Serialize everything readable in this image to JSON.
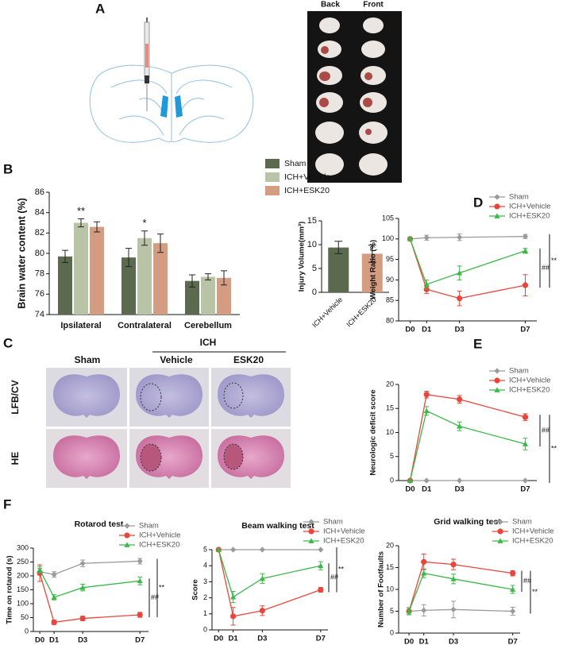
{
  "figure": {
    "panel_labels": [
      "A",
      "B",
      "C",
      "D",
      "E",
      "F"
    ],
    "photo_headers": [
      "Back",
      "Front"
    ],
    "histology": {
      "group": "ICH",
      "columns": [
        "Sham",
        "Vehicle",
        "ESK20"
      ],
      "rows": [
        "LFB/CV",
        "HE"
      ]
    }
  },
  "chart_data": [
    {
      "type": "bar",
      "y_label": "Brain water content (%)",
      "categories": [
        "Ipsilateral",
        "Contralateral",
        "Cerebellum"
      ],
      "series": [
        {
          "name": "Sham",
          "color": "#5b6a4e",
          "values": [
            79.7,
            79.6,
            77.3
          ],
          "errors": [
            0.6,
            0.9,
            0.6
          ]
        },
        {
          "name": "ICH+Vehicle",
          "color": "#b9c3a5",
          "values": [
            83.0,
            81.5,
            77.7
          ],
          "errors": [
            0.4,
            0.7,
            0.3
          ]
        },
        {
          "name": "ICH+ESK20",
          "color": "#d49c80",
          "values": [
            82.6,
            81.0,
            77.6
          ],
          "errors": [
            0.5,
            0.9,
            0.7
          ]
        }
      ],
      "annotations": [
        "**",
        "*"
      ],
      "ylim": [
        74,
        86
      ],
      "yticks": [
        74,
        76,
        78,
        80,
        82,
        84,
        86
      ]
    },
    {
      "type": "bar",
      "y_label": "Injury Volume(mm³)",
      "categories": [
        "ICH+Vehicle",
        "ICH+ESK20"
      ],
      "values": [
        9.4,
        8.1
      ],
      "errors": [
        1.3,
        1.8
      ],
      "colors": [
        "#5b6a4e",
        "#d49c80"
      ],
      "ylim": [
        0,
        15
      ],
      "yticks": [
        0,
        5,
        10,
        15
      ]
    },
    {
      "type": "line",
      "y_label": "Weight Ratio (%)",
      "x": [
        0,
        1,
        3,
        7
      ],
      "xticks": [
        {
          "value": 0,
          "label": "D0"
        },
        {
          "value": 1,
          "label": "D1"
        },
        {
          "value": 3,
          "label": "D3"
        },
        {
          "value": 7,
          "label": "D7"
        }
      ],
      "xlim": [
        -0.7,
        7.7
      ],
      "ylim": [
        80,
        105
      ],
      "yticks": [
        80,
        85,
        90,
        95,
        100,
        105
      ],
      "series": [
        {
          "name": "Sham",
          "color": "#9a9a9a",
          "marker": "diamond",
          "values": [
            100,
            100.3,
            100.4,
            100.6
          ],
          "errors": [
            0.3,
            0.6,
            0.8,
            0.5
          ]
        },
        {
          "name": "ICH+Vehicle",
          "color": "#e8453c",
          "marker": "circle",
          "values": [
            100,
            87.7,
            85.5,
            88.7
          ],
          "errors": [
            0.3,
            1.0,
            1.8,
            2.6
          ]
        },
        {
          "name": "ICH+ESK20",
          "color": "#3cb84a",
          "marker": "triangle",
          "values": [
            100,
            88.9,
            91.7,
            97.1
          ],
          "errors": [
            0.3,
            1.1,
            1.7,
            0.6
          ]
        }
      ],
      "annotations": [
        "##",
        "**"
      ]
    },
    {
      "type": "line",
      "y_label": "Neurologic deficit score",
      "x": [
        0,
        1,
        3,
        7
      ],
      "xticks": [
        {
          "value": 0,
          "label": "D0"
        },
        {
          "value": 1,
          "label": "D1"
        },
        {
          "value": 3,
          "label": "D3"
        },
        {
          "value": 7,
          "label": "D7"
        }
      ],
      "xlim": [
        -0.7,
        7.7
      ],
      "ylim": [
        0,
        20
      ],
      "yticks": [
        0,
        5,
        10,
        15,
        20
      ],
      "series": [
        {
          "name": "Sham",
          "color": "#9a9a9a",
          "marker": "diamond",
          "values": [
            0,
            0,
            0,
            0
          ],
          "errors": [
            0,
            0,
            0,
            0
          ]
        },
        {
          "name": "ICH+Vehicle",
          "color": "#e8453c",
          "marker": "circle",
          "values": [
            0,
            17.9,
            16.9,
            13.2
          ],
          "errors": [
            0,
            0.7,
            0.8,
            0.7
          ]
        },
        {
          "name": "ICH+ESK20",
          "color": "#3cb84a",
          "marker": "triangle",
          "values": [
            0,
            14.5,
            11.3,
            7.6
          ],
          "errors": [
            0,
            0.9,
            0.9,
            1.2
          ]
        }
      ],
      "annotations": [
        "##",
        "**"
      ]
    },
    {
      "type": "line",
      "title": "Rotarod test",
      "y_label": "Time on rotarod (s)",
      "x": [
        0,
        1,
        3,
        7
      ],
      "xticks": [
        {
          "value": 0,
          "label": "D0"
        },
        {
          "value": 1,
          "label": "D1"
        },
        {
          "value": 3,
          "label": "D3"
        },
        {
          "value": 7,
          "label": "D7"
        }
      ],
      "xlim": [
        -0.45,
        7.6
      ],
      "ylim": [
        0,
        300
      ],
      "yticks": [
        0,
        50,
        100,
        150,
        200,
        250,
        300
      ],
      "series": [
        {
          "name": "Sham",
          "color": "#9a9a9a",
          "marker": "diamond",
          "values": [
            215,
            205,
            245,
            253
          ],
          "errors": [
            12,
            10,
            12,
            10
          ]
        },
        {
          "name": "ICH+Vehicle",
          "color": "#e8453c",
          "marker": "circle",
          "values": [
            210,
            33,
            47,
            60
          ],
          "errors": [
            30,
            8,
            8,
            9
          ]
        },
        {
          "name": "ICH+ESK20",
          "color": "#3cb84a",
          "marker": "triangle",
          "values": [
            222,
            123,
            158,
            182
          ],
          "errors": [
            12,
            9,
            12,
            14
          ]
        }
      ],
      "annotations": [
        "##",
        "**"
      ]
    },
    {
      "type": "line",
      "title": "Beam walking test",
      "y_label": "Score",
      "x": [
        0,
        1,
        3,
        7
      ],
      "xticks": [
        {
          "value": 0,
          "label": "D0"
        },
        {
          "value": 1,
          "label": "D1"
        },
        {
          "value": 3,
          "label": "D3"
        },
        {
          "value": 7,
          "label": "D7"
        }
      ],
      "xlim": [
        -0.45,
        7.5
      ],
      "ylim": [
        0,
        5
      ],
      "yticks": [
        0,
        1,
        2,
        3,
        4,
        5
      ],
      "series": [
        {
          "name": "Sham",
          "color": "#9a9a9a",
          "marker": "diamond",
          "values": [
            5,
            5,
            5,
            5
          ],
          "errors": [
            0,
            0,
            0,
            0
          ]
        },
        {
          "name": "ICH+Vehicle",
          "color": "#e8453c",
          "marker": "circle",
          "values": [
            5,
            0.85,
            1.2,
            2.5
          ],
          "errors": [
            0,
            0.55,
            0.3,
            0.15
          ]
        },
        {
          "name": "ICH+ESK20",
          "color": "#3cb84a",
          "marker": "triangle",
          "values": [
            5,
            2.05,
            3.2,
            4.0
          ],
          "errors": [
            0,
            0.35,
            0.3,
            0.25
          ]
        }
      ],
      "annotations": [
        "##",
        "**"
      ]
    },
    {
      "type": "line",
      "title": "Grid walking test",
      "y_label": "Number of Footfaults",
      "x": [
        0,
        1,
        3,
        7
      ],
      "xticks": [
        {
          "value": 0,
          "label": "D0"
        },
        {
          "value": 1,
          "label": "D1"
        },
        {
          "value": 3,
          "label": "D3"
        },
        {
          "value": 7,
          "label": "D7"
        }
      ],
      "xlim": [
        -0.7,
        7.5
      ],
      "ylim": [
        0,
        20
      ],
      "yticks": [
        0,
        5,
        10,
        15,
        20
      ],
      "series": [
        {
          "name": "Sham",
          "color": "#9a9a9a",
          "marker": "diamond",
          "values": [
            5,
            5.2,
            5.4,
            5
          ],
          "errors": [
            0.8,
            1.3,
            1.9,
            0.9
          ]
        },
        {
          "name": "ICH+Vehicle",
          "color": "#e8453c",
          "marker": "circle",
          "values": [
            5,
            16.3,
            15.7,
            13.7
          ],
          "errors": [
            0.8,
            1.8,
            1.2,
            0.6
          ]
        },
        {
          "name": "ICH+ESK20",
          "color": "#3cb84a",
          "marker": "triangle",
          "values": [
            5,
            13.7,
            12.4,
            10
          ],
          "errors": [
            0.8,
            1.0,
            1.1,
            0.9
          ]
        }
      ],
      "annotations": [
        "##",
        "**"
      ]
    }
  ]
}
